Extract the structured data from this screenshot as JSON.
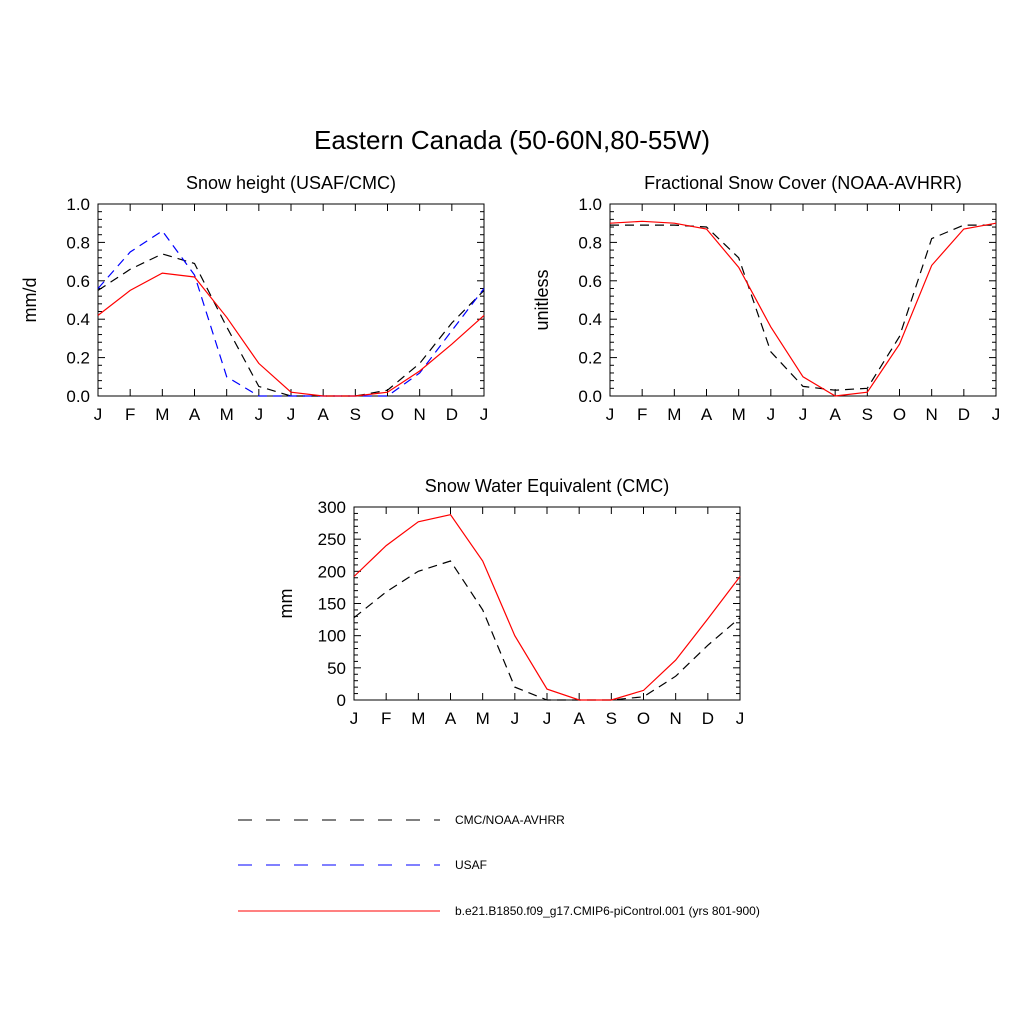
{
  "title": "Eastern Canada (50-60N,80-55W)",
  "legend": [
    {
      "label": "CMC/NOAA-AVHRR",
      "color": "#000000",
      "style": "dashed"
    },
    {
      "label": "USAF",
      "color": "#0000ff",
      "style": "dashed"
    },
    {
      "label": "b.e21.B1850.f09_g17.CMIP6-piControl.001 (yrs 801-900)",
      "color": "#ff0000",
      "style": "solid"
    }
  ],
  "chart_data": [
    {
      "type": "line",
      "title": "Snow height (USAF/CMC)",
      "xlabel": "",
      "ylabel": "mm/d",
      "categories": [
        "J",
        "F",
        "M",
        "A",
        "M",
        "J",
        "J",
        "A",
        "S",
        "O",
        "N",
        "D",
        "J"
      ],
      "ylim": [
        0,
        1.0
      ],
      "yticks": [
        0.0,
        0.2,
        0.4,
        0.6,
        0.8,
        1.0
      ],
      "ytick_labels": [
        "0.0",
        "0.2",
        "0.4",
        "0.6",
        "0.8",
        "1.0"
      ],
      "series": [
        {
          "name": "CMC/NOAA-AVHRR",
          "color": "#000000",
          "style": "dashed",
          "values": [
            0.55,
            0.66,
            0.74,
            0.69,
            0.36,
            0.05,
            0.0,
            0.0,
            0.0,
            0.03,
            0.17,
            0.38,
            0.55
          ]
        },
        {
          "name": "USAF",
          "color": "#0000ff",
          "style": "dashed",
          "values": [
            0.56,
            0.75,
            0.86,
            0.63,
            0.1,
            0.0,
            0.0,
            0.0,
            0.0,
            0.0,
            0.12,
            0.34,
            0.56
          ]
        },
        {
          "name": "b.e21.B1850.f09_g17.CMIP6-piControl.001 (yrs 801-900)",
          "color": "#ff0000",
          "style": "solid",
          "values": [
            0.42,
            0.55,
            0.64,
            0.62,
            0.41,
            0.17,
            0.02,
            0.0,
            0.0,
            0.02,
            0.13,
            0.27,
            0.42
          ]
        }
      ]
    },
    {
      "type": "line",
      "title": "Fractional Snow Cover (NOAA-AVHRR)",
      "xlabel": "",
      "ylabel": "unitless",
      "categories": [
        "J",
        "F",
        "M",
        "A",
        "M",
        "J",
        "J",
        "A",
        "S",
        "O",
        "N",
        "D",
        "J"
      ],
      "ylim": [
        0,
        1.0
      ],
      "yticks": [
        0.0,
        0.2,
        0.4,
        0.6,
        0.8,
        1.0
      ],
      "ytick_labels": [
        "0.0",
        "0.2",
        "0.4",
        "0.6",
        "0.8",
        "1.0"
      ],
      "series": [
        {
          "name": "CMC/NOAA-AVHRR",
          "color": "#000000",
          "style": "dashed",
          "values": [
            0.89,
            0.89,
            0.89,
            0.88,
            0.72,
            0.23,
            0.05,
            0.03,
            0.04,
            0.31,
            0.82,
            0.89,
            0.89
          ]
        },
        {
          "name": "b.e21.B1850.f09_g17.CMIP6-piControl.001 (yrs 801-900)",
          "color": "#ff0000",
          "style": "solid",
          "values": [
            0.9,
            0.91,
            0.9,
            0.87,
            0.67,
            0.36,
            0.1,
            0.0,
            0.02,
            0.27,
            0.68,
            0.87,
            0.9
          ]
        }
      ]
    },
    {
      "type": "line",
      "title": "Snow Water Equivalent (CMC)",
      "xlabel": "",
      "ylabel": "mm",
      "categories": [
        "J",
        "F",
        "M",
        "A",
        "M",
        "J",
        "J",
        "A",
        "S",
        "O",
        "N",
        "D",
        "J"
      ],
      "ylim": [
        0,
        300
      ],
      "yticks": [
        0,
        50,
        100,
        150,
        200,
        250,
        300
      ],
      "ytick_labels": [
        "0",
        "50",
        "100",
        "150",
        "200",
        "250",
        "300"
      ],
      "series": [
        {
          "name": "CMC/NOAA-AVHRR",
          "color": "#000000",
          "style": "dashed",
          "values": [
            128,
            168,
            200,
            216,
            140,
            20,
            0,
            0,
            0,
            5,
            37,
            85,
            128
          ]
        },
        {
          "name": "b.e21.B1850.f09_g17.CMIP6-piControl.001 (yrs 801-900)",
          "color": "#ff0000",
          "style": "solid",
          "values": [
            192,
            240,
            277,
            288,
            216,
            100,
            17,
            0,
            0,
            15,
            62,
            126,
            192
          ]
        }
      ]
    }
  ]
}
